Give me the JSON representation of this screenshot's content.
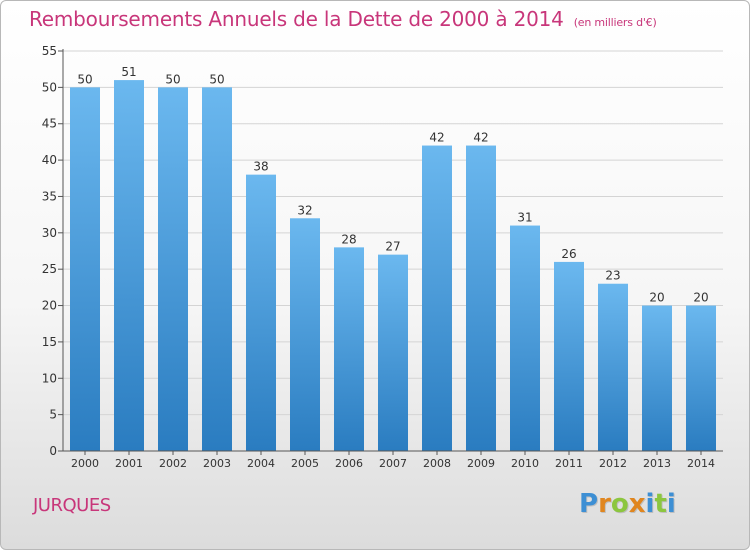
{
  "colors": {
    "title": "#c8367a",
    "bar_light": "#6bb8ef",
    "bar_dark": "#2a7cc0",
    "axis": "#555555",
    "grid": "#d4d4d4",
    "text": "#333333"
  },
  "title": "Remboursements Annuels de la Dette de 2000 à 2014",
  "subtitle": "(en milliers d'€)",
  "location": "JURQUES",
  "logo": {
    "text": "Proxiti",
    "letters": [
      {
        "ch": "P",
        "color": "#3d8fd4"
      },
      {
        "ch": "r",
        "color": "#e0861f"
      },
      {
        "ch": "o",
        "color": "#8cc63f"
      },
      {
        "ch": "x",
        "color": "#e0861f"
      },
      {
        "ch": "i",
        "color": "#3d8fd4"
      },
      {
        "ch": "t",
        "color": "#8cc63f"
      },
      {
        "ch": "i",
        "color": "#3d8fd4"
      }
    ]
  },
  "chart_data": {
    "type": "bar",
    "title": "Remboursements Annuels de la Dette de 2000 à 2014",
    "subtitle": "(en milliers d'€)",
    "xlabel": "",
    "ylabel": "",
    "categories": [
      "2000",
      "2001",
      "2002",
      "2003",
      "2004",
      "2005",
      "2006",
      "2007",
      "2008",
      "2009",
      "2010",
      "2011",
      "2012",
      "2013",
      "2014"
    ],
    "values": [
      50,
      51,
      50,
      50,
      38,
      32,
      28,
      27,
      42,
      42,
      31,
      26,
      23,
      20,
      20
    ],
    "data_labels": [
      "50",
      "51",
      "50",
      "50",
      "38",
      "32",
      "28",
      "27",
      "42",
      "42",
      "31",
      "26",
      "23",
      "20",
      "20"
    ],
    "ylim": [
      0,
      55
    ],
    "yticks": [
      0,
      5,
      10,
      15,
      20,
      25,
      30,
      35,
      40,
      45,
      50,
      55
    ],
    "grid": true
  }
}
